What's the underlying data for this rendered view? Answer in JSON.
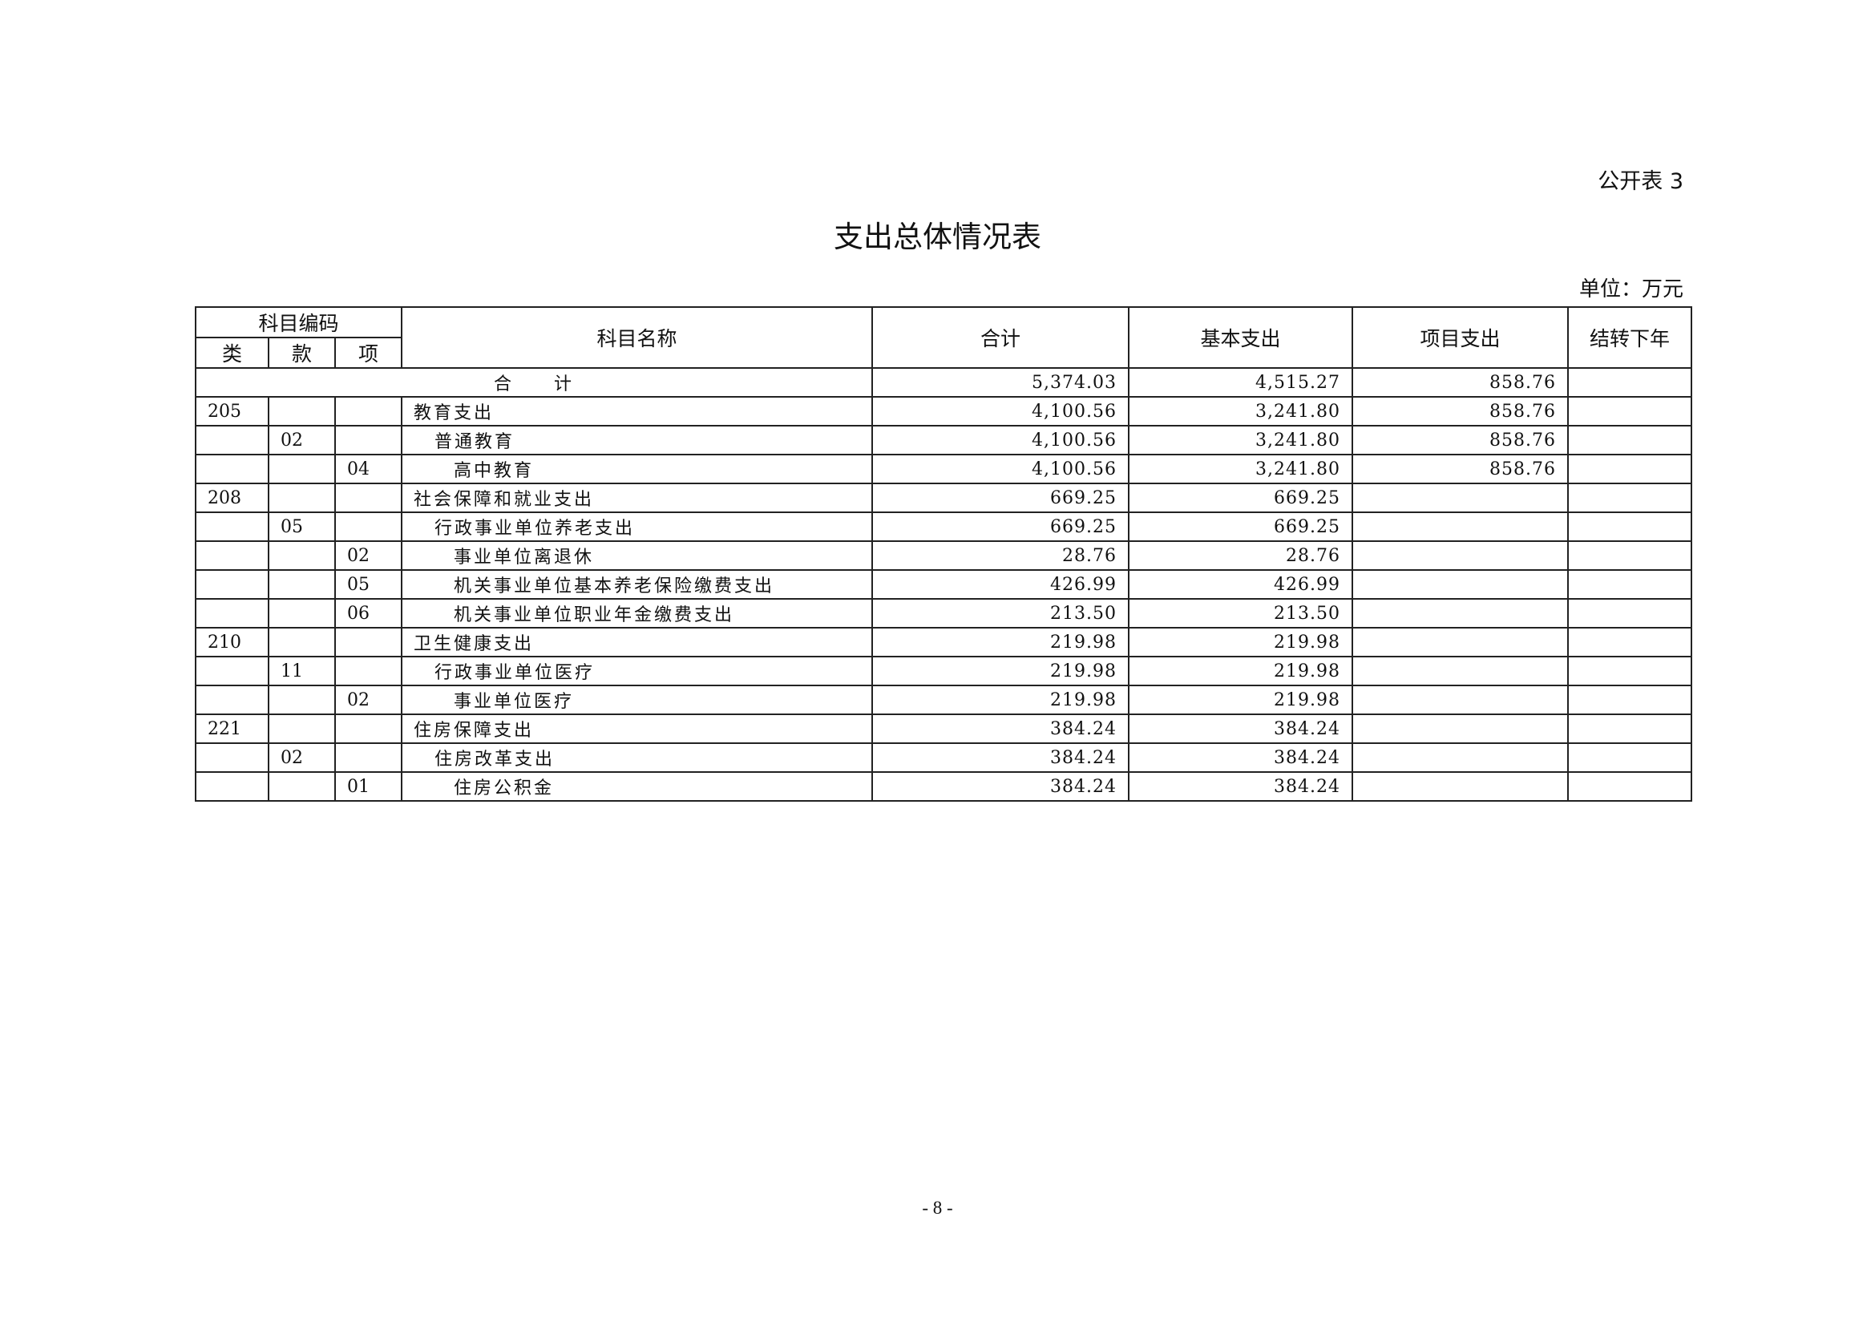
{
  "label": "公开表 3",
  "title": "支出总体情况表",
  "unit": "单位：万元",
  "page_number": "- 8 -",
  "table": {
    "headers": {
      "code_group": "科目编码",
      "class": "类",
      "section": "款",
      "item": "项",
      "name": "科目名称",
      "total": "合计",
      "basic": "基本支出",
      "project": "项目支出",
      "carryover": "结转下年"
    },
    "total_row": {
      "label": "合　　计",
      "total": "5,374.03",
      "basic": "4,515.27",
      "project": "858.76",
      "carryover": ""
    },
    "rows": [
      {
        "class": "205",
        "section": "",
        "item": "",
        "name": "教育支出",
        "level": 1,
        "total": "4,100.56",
        "basic": "3,241.80",
        "project": "858.76",
        "carryover": ""
      },
      {
        "class": "",
        "section": "02",
        "item": "",
        "name": "普通教育",
        "level": 2,
        "total": "4,100.56",
        "basic": "3,241.80",
        "project": "858.76",
        "carryover": ""
      },
      {
        "class": "",
        "section": "",
        "item": "04",
        "name": "高中教育",
        "level": 3,
        "total": "4,100.56",
        "basic": "3,241.80",
        "project": "858.76",
        "carryover": ""
      },
      {
        "class": "208",
        "section": "",
        "item": "",
        "name": "社会保障和就业支出",
        "level": 1,
        "total": "669.25",
        "basic": "669.25",
        "project": "",
        "carryover": ""
      },
      {
        "class": "",
        "section": "05",
        "item": "",
        "name": "行政事业单位养老支出",
        "level": 2,
        "total": "669.25",
        "basic": "669.25",
        "project": "",
        "carryover": ""
      },
      {
        "class": "",
        "section": "",
        "item": "02",
        "name": "事业单位离退休",
        "level": 3,
        "total": "28.76",
        "basic": "28.76",
        "project": "",
        "carryover": ""
      },
      {
        "class": "",
        "section": "",
        "item": "05",
        "name": "机关事业单位基本养老保险缴费支出",
        "level": 3,
        "total": "426.99",
        "basic": "426.99",
        "project": "",
        "carryover": ""
      },
      {
        "class": "",
        "section": "",
        "item": "06",
        "name": "机关事业单位职业年金缴费支出",
        "level": 3,
        "total": "213.50",
        "basic": "213.50",
        "project": "",
        "carryover": ""
      },
      {
        "class": "210",
        "section": "",
        "item": "",
        "name": "卫生健康支出",
        "level": 1,
        "total": "219.98",
        "basic": "219.98",
        "project": "",
        "carryover": ""
      },
      {
        "class": "",
        "section": "11",
        "item": "",
        "name": "行政事业单位医疗",
        "level": 2,
        "total": "219.98",
        "basic": "219.98",
        "project": "",
        "carryover": ""
      },
      {
        "class": "",
        "section": "",
        "item": "02",
        "name": "事业单位医疗",
        "level": 3,
        "total": "219.98",
        "basic": "219.98",
        "project": "",
        "carryover": ""
      },
      {
        "class": "221",
        "section": "",
        "item": "",
        "name": "住房保障支出",
        "level": 1,
        "total": "384.24",
        "basic": "384.24",
        "project": "",
        "carryover": ""
      },
      {
        "class": "",
        "section": "02",
        "item": "",
        "name": "住房改革支出",
        "level": 2,
        "total": "384.24",
        "basic": "384.24",
        "project": "",
        "carryover": ""
      },
      {
        "class": "",
        "section": "",
        "item": "01",
        "name": "住房公积金",
        "level": 3,
        "total": "384.24",
        "basic": "384.24",
        "project": "",
        "carryover": ""
      }
    ]
  }
}
